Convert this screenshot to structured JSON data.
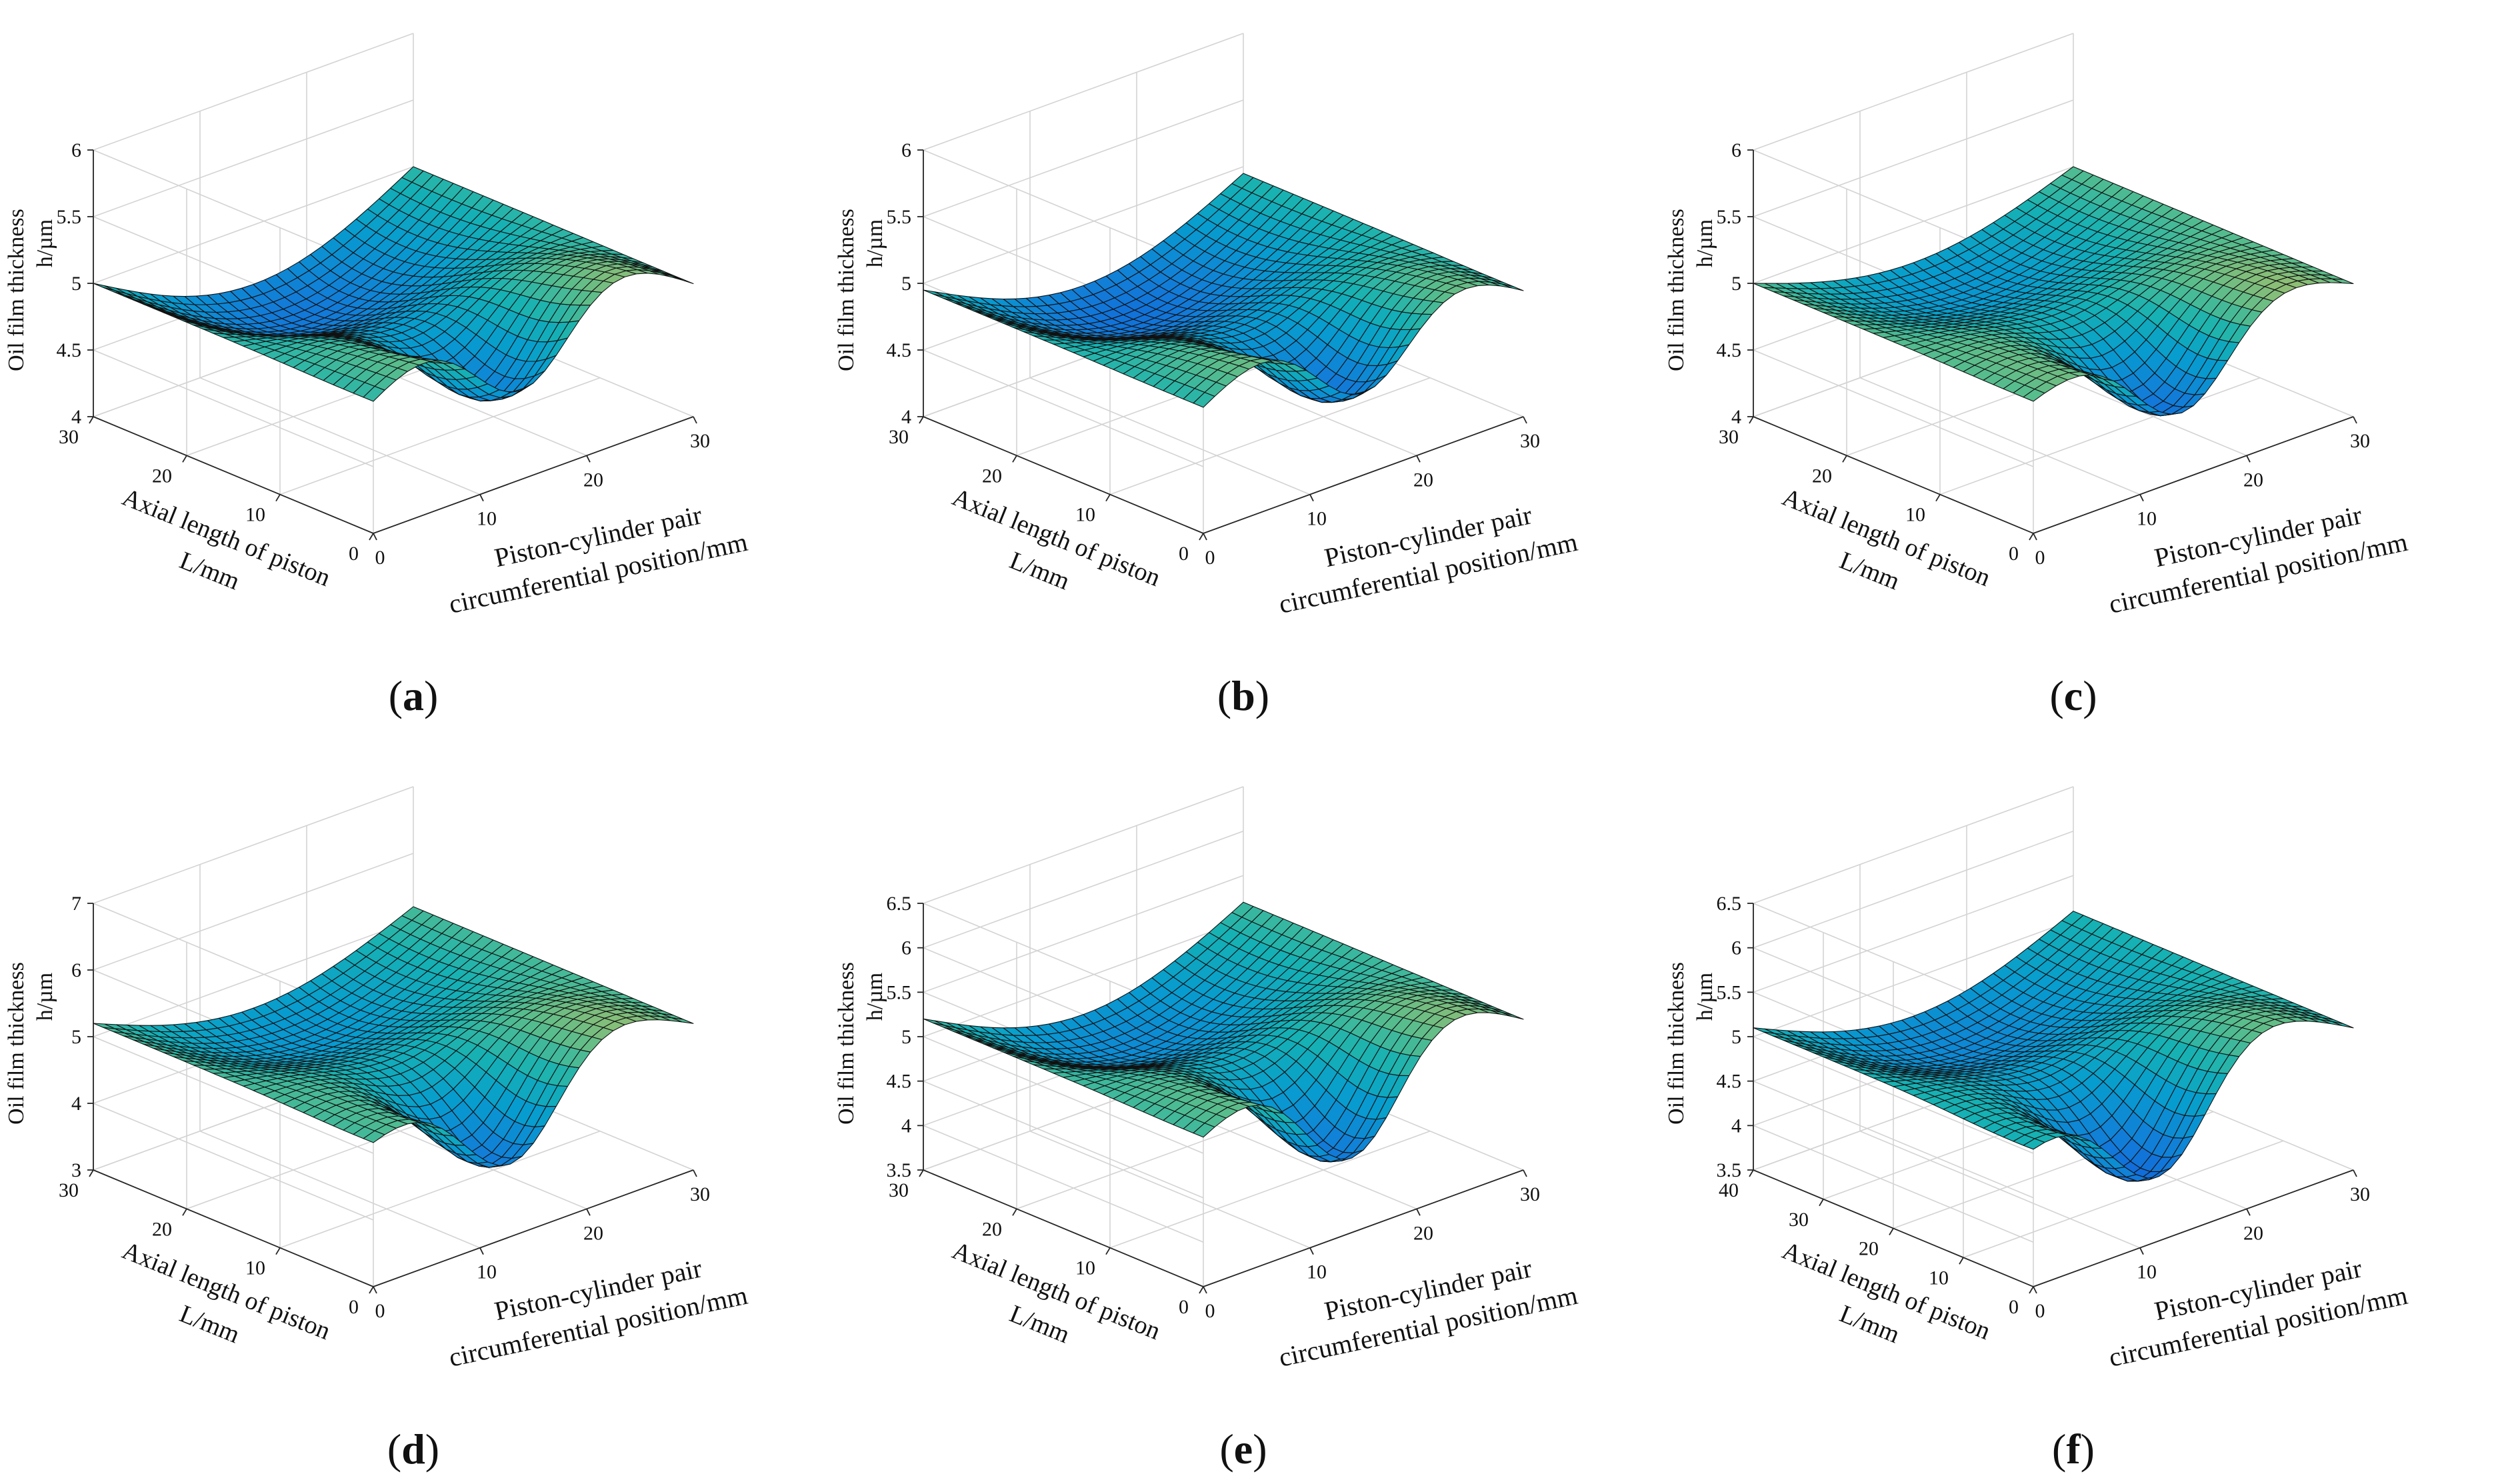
{
  "figure": {
    "subplot_labels": [
      "a",
      "b",
      "c",
      "d",
      "e",
      "f"
    ]
  },
  "chart_data": [
    {
      "panel": "a",
      "type": "surface",
      "zlabel_line1": "Oil film thickness",
      "zlabel_line2": "h/µm",
      "ylabel_line1": "Axial length of piston",
      "ylabel_line2": "L/mm",
      "xlabel_line1": "Piston-cylinder pair",
      "xlabel_line2": "circumferential position/mm",
      "xlim": [
        0,
        30
      ],
      "ylim": [
        0,
        30
      ],
      "zlim": [
        4,
        6
      ],
      "x_ticks": [
        "0",
        "10",
        "20",
        "30"
      ],
      "y_ticks": [
        "0",
        "10",
        "20",
        "30"
      ],
      "z_ticks": [
        "4",
        "4.5",
        "5",
        "5.5",
        "6"
      ],
      "z_base": 5.0,
      "ripple_amplitude": 0.55,
      "dip_depth": 1.0,
      "dip_position": [
        14,
        3
      ],
      "z_min": 4.0,
      "z_max": 5.6
    },
    {
      "panel": "b",
      "type": "surface",
      "zlabel_line1": "Oil film thickness",
      "zlabel_line2": "h/µm",
      "ylabel_line1": "Axial length of piston",
      "ylabel_line2": "L/mm",
      "xlabel_line1": "Piston-cylinder pair",
      "xlabel_line2": "circumferential position/mm",
      "xlim": [
        0,
        30
      ],
      "ylim": [
        0,
        30
      ],
      "zlim": [
        4,
        6
      ],
      "x_ticks": [
        "0",
        "10",
        "20",
        "30"
      ],
      "y_ticks": [
        "0",
        "10",
        "20",
        "30"
      ],
      "z_ticks": [
        "4",
        "4.5",
        "5",
        "5.5",
        "6"
      ],
      "z_base": 4.95,
      "ripple_amplitude": 0.5,
      "dip_depth": 0.95,
      "dip_position": [
        15,
        3
      ],
      "z_min": 4.1,
      "z_max": 5.5
    },
    {
      "panel": "c",
      "type": "surface",
      "zlabel_line1": "Oil film thickness",
      "zlabel_line2": "h/µm",
      "ylabel_line1": "Axial length of piston",
      "ylabel_line2": "L/mm",
      "xlabel_line1": "Piston-cylinder pair",
      "xlabel_line2": "circumferential position/mm",
      "xlim": [
        0,
        30
      ],
      "ylim": [
        0,
        30
      ],
      "zlim": [
        4,
        6
      ],
      "x_ticks": [
        "0",
        "10",
        "20",
        "30"
      ],
      "y_ticks": [
        "0",
        "10",
        "20",
        "30"
      ],
      "z_ticks": [
        "4",
        "4.5",
        "5",
        "5.5",
        "6"
      ],
      "z_base": 5.0,
      "ripple_amplitude": 0.35,
      "dip_depth": 0.9,
      "dip_position": [
        14,
        2
      ],
      "z_min": 4.1,
      "z_max": 5.4
    },
    {
      "panel": "d",
      "type": "surface",
      "zlabel_line1": "Oil film thickness",
      "zlabel_line2": "h/µm",
      "ylabel_line1": "Axial length of piston",
      "ylabel_line2": "L/mm",
      "xlabel_line1": "Piston-cylinder pair",
      "xlabel_line2": "circumferential position/mm",
      "xlim": [
        0,
        30
      ],
      "ylim": [
        0,
        30
      ],
      "zlim": [
        3,
        7
      ],
      "x_ticks": [
        "0",
        "10",
        "20",
        "30"
      ],
      "y_ticks": [
        "0",
        "10",
        "20",
        "30"
      ],
      "z_ticks": [
        "3",
        "4",
        "5",
        "6",
        "7"
      ],
      "z_base": 5.2,
      "ripple_amplitude": 0.8,
      "dip_depth": 2.0,
      "dip_position": [
        13,
        2
      ],
      "z_min": 3.0,
      "z_max": 6.3
    },
    {
      "panel": "e",
      "type": "surface",
      "zlabel_line1": "Oil film thickness",
      "zlabel_line2": "h/µm",
      "ylabel_line1": "Axial length of piston",
      "ylabel_line2": "L/mm",
      "xlabel_line1": "Piston-cylinder pair",
      "xlabel_line2": "circumferential position/mm",
      "xlim": [
        0,
        30
      ],
      "ylim": [
        0,
        30
      ],
      "zlim": [
        3.5,
        6.5
      ],
      "x_ticks": [
        "0",
        "10",
        "20",
        "30"
      ],
      "y_ticks": [
        "0",
        "10",
        "20",
        "30"
      ],
      "z_ticks": [
        "3.5",
        "4",
        "4.5",
        "5",
        "5.5",
        "6",
        "6.5"
      ],
      "z_base": 5.2,
      "ripple_amplitude": 0.75,
      "dip_depth": 1.7,
      "dip_position": [
        14,
        2
      ],
      "z_min": 3.5,
      "z_max": 6.1
    },
    {
      "panel": "f",
      "type": "surface",
      "zlabel_line1": "Oil film thickness",
      "zlabel_line2": "h/µm",
      "ylabel_line1": "Axial length of piston",
      "ylabel_line2": "L/mm",
      "xlabel_line1": "Piston-cylinder pair",
      "xlabel_line2": "circumferential position/mm",
      "xlim": [
        0,
        30
      ],
      "ylim": [
        0,
        40
      ],
      "zlim": [
        3.5,
        6.5
      ],
      "x_ticks": [
        "0",
        "10",
        "20",
        "30"
      ],
      "y_ticks": [
        "0",
        "10",
        "20",
        "30",
        "40"
      ],
      "z_ticks": [
        "3.5",
        "4",
        "4.5",
        "5",
        "5.5",
        "6",
        "6.5"
      ],
      "z_base": 5.1,
      "ripple_amplitude": 0.65,
      "dip_depth": 1.6,
      "dip_position": [
        12,
        3
      ],
      "z_min": 3.5,
      "z_max": 6.2
    }
  ]
}
